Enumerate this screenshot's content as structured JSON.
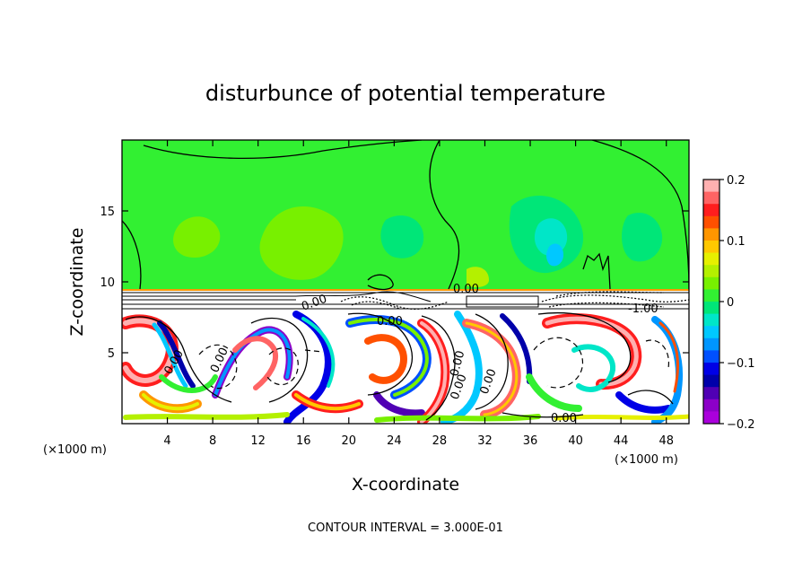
{
  "chart_data": {
    "type": "heatmap",
    "title": "disturbunce of potential temperature",
    "xlabel": "X-coordinate",
    "ylabel": "Z-coordinate",
    "x_unit_label": "(×1000 m)",
    "y_unit_label": "(×1000 m)",
    "xlim": [
      0,
      50
    ],
    "ylim": [
      0,
      20
    ],
    "x_ticks": [
      4,
      8,
      12,
      16,
      20,
      24,
      28,
      32,
      36,
      40,
      44,
      48
    ],
    "y_ticks": [
      5,
      10,
      15
    ],
    "colorbar": {
      "min": -0.2,
      "max": 0.2,
      "tick_values": [
        0.2,
        0.1,
        0,
        -0.1,
        -0.2
      ],
      "tick_labels": [
        "0.2",
        "0.1",
        "0",
        "−0.1",
        "−0.2"
      ],
      "colors": [
        "#ffb0b0",
        "#ff6464",
        "#ff1e1e",
        "#ff5000",
        "#ff9600",
        "#ffc800",
        "#e6f000",
        "#b4f000",
        "#78f000",
        "#32f032",
        "#00e678",
        "#00e6c8",
        "#00c8ff",
        "#0096ff",
        "#0050ff",
        "#0000e6",
        "#0000aa",
        "#5000b4",
        "#8c00c8",
        "#aa00dc"
      ]
    },
    "contour_labels": [
      "0.00",
      "0.00",
      "0.00",
      "0.00",
      "0.00",
      "0.00",
      "-1.00",
      "0.00",
      "0.00",
      "0.00"
    ],
    "footnote": "CONTOUR INTERVAL = 3.000E-01"
  }
}
